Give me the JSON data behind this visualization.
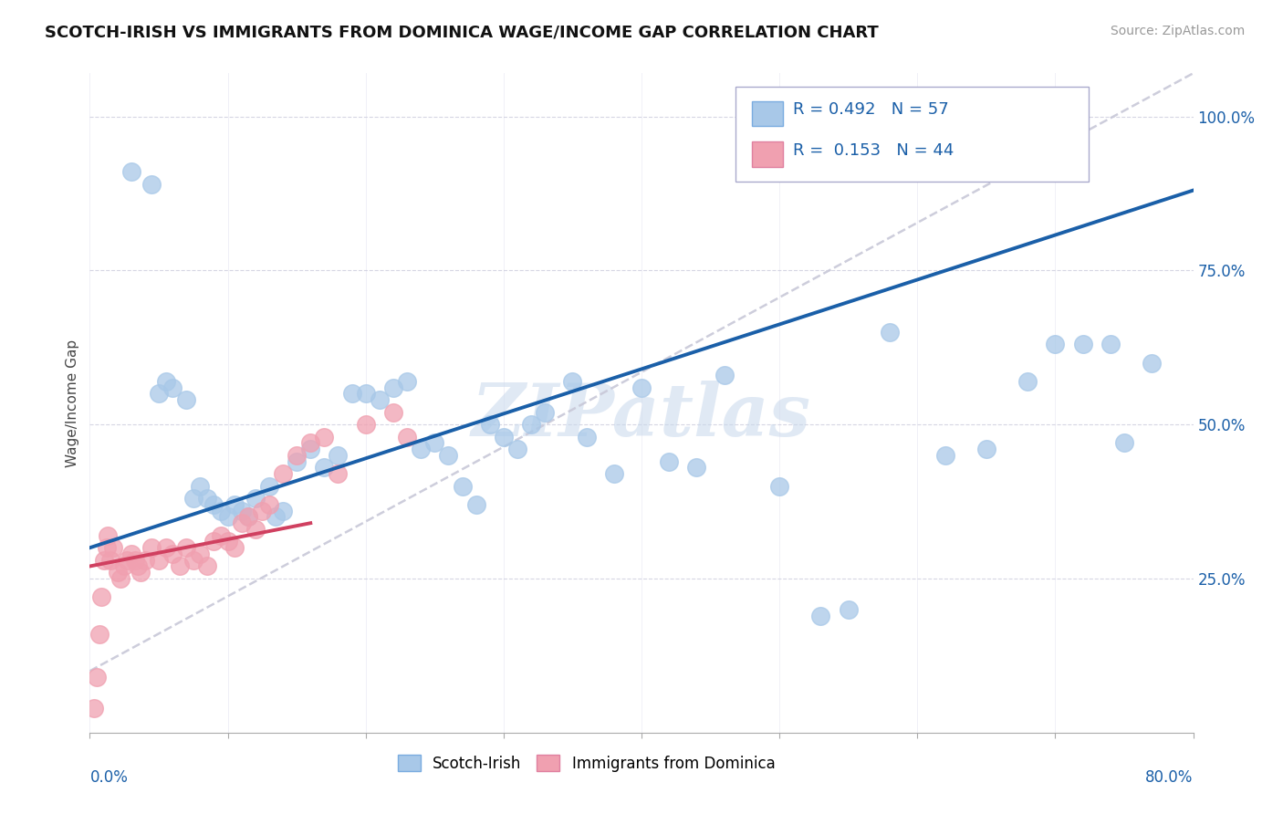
{
  "title": "SCOTCH-IRISH VS IMMIGRANTS FROM DOMINICA WAGE/INCOME GAP CORRELATION CHART",
  "source": "Source: ZipAtlas.com",
  "ylabel": "Wage/Income Gap",
  "xlim": [
    0.0,
    80.0
  ],
  "ylim": [
    0.0,
    107.0
  ],
  "yticks": [
    25.0,
    50.0,
    75.0,
    100.0
  ],
  "ytick_labels": [
    "25.0%",
    "50.0%",
    "75.0%",
    "100.0%"
  ],
  "legend_r1": "R = 0.492",
  "legend_n1": "N = 57",
  "legend_r2": "R =  0.153",
  "legend_n2": "N = 44",
  "blue_color": "#a8c8e8",
  "pink_color": "#f0a0b0",
  "trend_blue": "#1a5fa8",
  "trend_pink": "#d04060",
  "trend_gray_color": "#c8c8d8",
  "background": "#ffffff",
  "watermark": "ZIPatlas",
  "blue_trend_x0": 0.0,
  "blue_trend_y0": 30.0,
  "blue_trend_x1": 80.0,
  "blue_trend_y1": 88.0,
  "pink_trend_x0": 0.0,
  "pink_trend_y0": 27.0,
  "pink_trend_x1": 16.0,
  "pink_trend_y1": 34.0,
  "gray_trend_x0": 0.0,
  "gray_trend_y0": 10.0,
  "gray_trend_x1": 80.0,
  "gray_trend_y1": 107.0,
  "scotch_irish_x": [
    3.0,
    4.5,
    5.0,
    5.5,
    6.0,
    7.0,
    7.5,
    8.0,
    8.5,
    9.0,
    9.5,
    10.0,
    10.5,
    11.0,
    11.5,
    12.0,
    13.0,
    13.5,
    14.0,
    15.0,
    16.0,
    17.0,
    18.0,
    19.0,
    20.0,
    21.0,
    22.0,
    23.0,
    24.0,
    25.0,
    26.0,
    27.0,
    28.0,
    29.0,
    30.0,
    31.0,
    32.0,
    33.0,
    35.0,
    36.0,
    38.0,
    40.0,
    42.0,
    44.0,
    46.0,
    50.0,
    53.0,
    55.0,
    58.0,
    62.0,
    65.0,
    68.0,
    70.0,
    72.0,
    74.0,
    75.0,
    77.0
  ],
  "scotch_irish_y": [
    91.0,
    89.0,
    55.0,
    57.0,
    56.0,
    54.0,
    38.0,
    40.0,
    38.0,
    37.0,
    36.0,
    35.0,
    37.0,
    36.0,
    35.0,
    38.0,
    40.0,
    35.0,
    36.0,
    44.0,
    46.0,
    43.0,
    45.0,
    55.0,
    55.0,
    54.0,
    56.0,
    57.0,
    46.0,
    47.0,
    45.0,
    40.0,
    37.0,
    50.0,
    48.0,
    46.0,
    50.0,
    52.0,
    57.0,
    48.0,
    42.0,
    56.0,
    44.0,
    43.0,
    58.0,
    40.0,
    19.0,
    20.0,
    65.0,
    45.0,
    46.0,
    57.0,
    63.0,
    63.0,
    63.0,
    47.0,
    60.0
  ],
  "dominica_x": [
    0.3,
    0.5,
    0.7,
    0.8,
    1.0,
    1.2,
    1.3,
    1.5,
    1.7,
    2.0,
    2.2,
    2.5,
    2.7,
    3.0,
    3.3,
    3.5,
    3.7,
    4.0,
    4.5,
    5.0,
    5.5,
    6.0,
    6.5,
    7.0,
    7.5,
    8.0,
    8.5,
    9.0,
    9.5,
    10.0,
    10.5,
    11.0,
    11.5,
    12.0,
    12.5,
    13.0,
    14.0,
    15.0,
    16.0,
    17.0,
    18.0,
    20.0,
    22.0,
    23.0
  ],
  "dominica_y": [
    4.0,
    9.0,
    16.0,
    22.0,
    28.0,
    30.0,
    32.0,
    28.0,
    30.0,
    26.0,
    25.0,
    27.0,
    28.0,
    29.0,
    28.0,
    27.0,
    26.0,
    28.0,
    30.0,
    28.0,
    30.0,
    29.0,
    27.0,
    30.0,
    28.0,
    29.0,
    27.0,
    31.0,
    32.0,
    31.0,
    30.0,
    34.0,
    35.0,
    33.0,
    36.0,
    37.0,
    42.0,
    45.0,
    47.0,
    48.0,
    42.0,
    50.0,
    52.0,
    48.0
  ]
}
